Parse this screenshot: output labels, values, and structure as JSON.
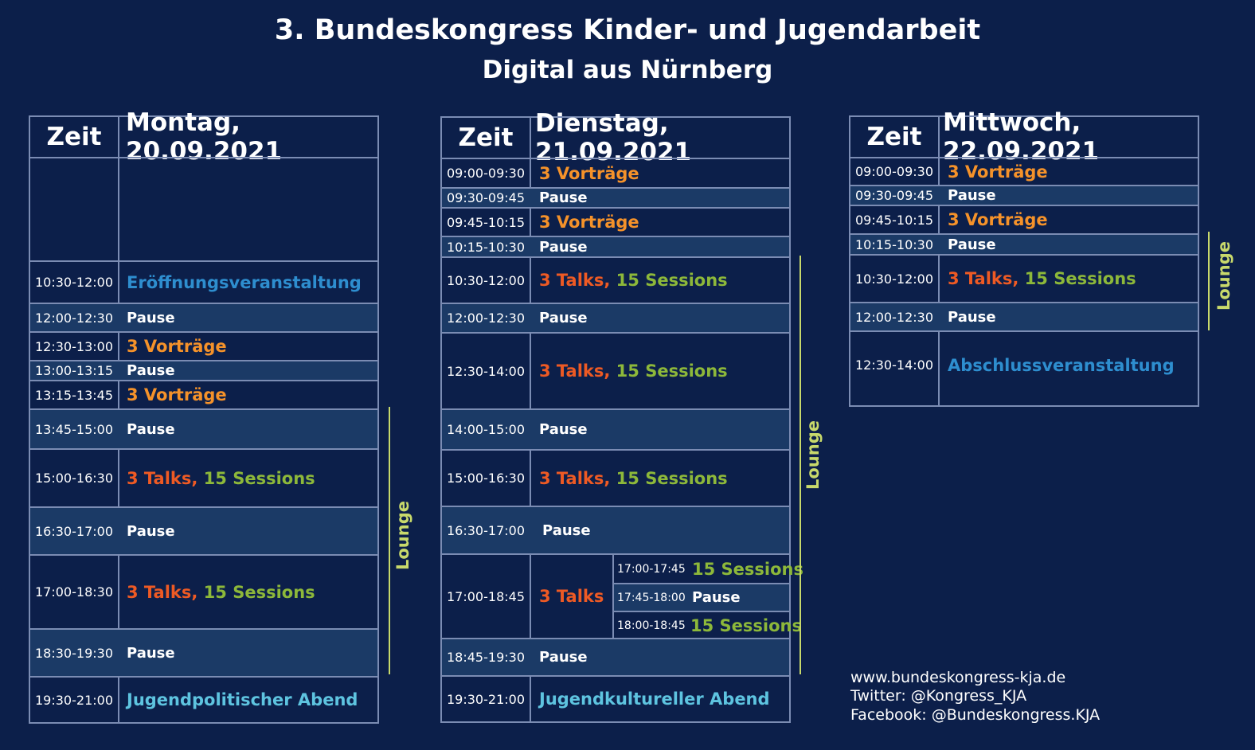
{
  "header": {
    "title": "3. Bundeskongress Kinder- und Jugendarbeit",
    "subtitle": "Digital aus Nürnberg"
  },
  "labels": {
    "zeit": "Zeit",
    "pause": "Pause",
    "vortraege": "3 Vorträge",
    "talks": "3 Talks,",
    "talks_only": "3 Talks",
    "sessions": "15 Sessions",
    "lounge": "Lounge"
  },
  "monday": {
    "day": "Montag, 20.09.2021",
    "times": [
      "10:30-12:00",
      "12:00-12:30",
      "12:30-13:00",
      "13:00-13:15",
      "13:15-13:45",
      "13:45-15:00",
      "15:00-16:30",
      "16:30-17:00",
      "17:00-18:30",
      "18:30-19:30",
      "19:30-21:00"
    ],
    "opening": "Eröffnungsveranstaltung",
    "evening": "Jugendpolitischer Abend"
  },
  "tuesday": {
    "day": "Dienstag, 21.09.2021",
    "times": [
      "09:00-09:30",
      "09:30-09:45",
      "09:45-10:15",
      "10:15-10:30",
      "10:30-12:00",
      "12:00-12:30",
      "12:30-14:00",
      "14:00-15:00",
      "15:00-16:30",
      "16:30-17:00",
      "17:00-18:45",
      "18:45-19:30",
      "19:30-21:00"
    ],
    "sub_times": [
      "17:00-17:45",
      "17:45-18:00",
      "18:00-18:45"
    ],
    "evening": "Jugendkultureller Abend"
  },
  "wednesday": {
    "day": "Mittwoch, 22.09.2021",
    "times": [
      "09:00-09:30",
      "09:30-09:45",
      "09:45-10:15",
      "10:15-10:30",
      "10:30-12:00",
      "12:00-12:30",
      "12:30-14:00"
    ],
    "closing": "Abschlussveranstaltung"
  },
  "footer": {
    "website": "www.bundeskongress-kja.de",
    "twitter": "Twitter: @Kongress_KJA",
    "facebook": "Facebook: @Bundeskongress.KJA"
  },
  "colors": {
    "background": "#0c1f4a",
    "pause_row": "#1b3a66",
    "vortraege": "#f5922a",
    "talks": "#ee5a24",
    "sessions": "#8db83a",
    "event": "#2e8ecf",
    "evening": "#5ec4e0",
    "lounge": "#c8d96b"
  }
}
